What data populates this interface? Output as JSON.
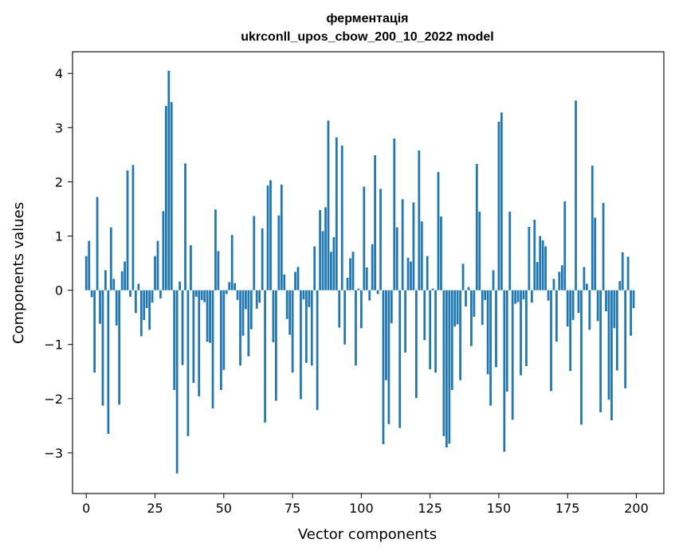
{
  "chart_data": {
    "type": "bar",
    "title_line1": "ферментація",
    "title_line2": "ukrconll_upos_cbow_200_10_2022 model",
    "xlabel": "Vector components",
    "ylabel": "Components values",
    "xlim": [
      -5,
      210
    ],
    "ylim": [
      -3.75,
      4.4
    ],
    "xticks": [
      0,
      25,
      50,
      75,
      100,
      125,
      150,
      175,
      200
    ],
    "yticks": [
      -3,
      -2,
      -1,
      0,
      1,
      2,
      3,
      4
    ],
    "bar_color": "#1f77b4",
    "x_start": 0,
    "values": [
      0.63,
      0.91,
      -0.13,
      -1.52,
      1.72,
      -0.62,
      -2.13,
      0.37,
      -2.65,
      1.16,
      0.21,
      -0.65,
      -2.11,
      0.35,
      0.53,
      2.21,
      -0.12,
      2.31,
      -0.42,
      0.12,
      -0.85,
      -0.55,
      -0.33,
      -0.73,
      -0.23,
      0.63,
      0.91,
      -0.15,
      1.46,
      3.4,
      4.05,
      3.47,
      -1.84,
      -3.38,
      0.16,
      -1.38,
      2.34,
      -2.69,
      0.83,
      -1.71,
      -0.12,
      -1.96,
      -0.18,
      -0.22,
      -0.95,
      -0.97,
      -2.18,
      1.49,
      0.72,
      -1.84,
      -1.47,
      -0.07,
      0.15,
      1.02,
      0.13,
      -0.18,
      -1.39,
      -0.84,
      -0.35,
      -1.22,
      -0.72,
      1.37,
      -0.34,
      -0.23,
      1.14,
      -2.44,
      1.93,
      2.03,
      -0.96,
      -2.04,
      1.38,
      1.95,
      0.29,
      -0.53,
      -0.82,
      -1.52,
      0.34,
      0.43,
      -2.01,
      -0.17,
      -1.34,
      -0.31,
      -1.39,
      0.81,
      -2.21,
      1.48,
      1.09,
      1.53,
      3.13,
      0.71,
      0.98,
      2.82,
      -0.69,
      2.67,
      -1.0,
      0.23,
      0.59,
      0.71,
      -1.39,
      0.03,
      -0.7,
      1.91,
      0.42,
      -0.19,
      0.85,
      2.49,
      -0.07,
      1.87,
      -2.84,
      -1.66,
      -2.47,
      -0.61,
      2.8,
      1.16,
      -2.54,
      1.68,
      -1.15,
      0.6,
      0.53,
      1.62,
      -1.99,
      2.58,
      1.27,
      -0.92,
      0.63,
      -1.46,
      0.03,
      -1.52,
      2.18,
      1.36,
      -2.69,
      -2.9,
      -2.83,
      -1.84,
      -0.67,
      -0.63,
      -1.66,
      0.49,
      -0.3,
      0.06,
      -1.03,
      -0.49,
      2.33,
      1.45,
      -0.64,
      -0.18,
      -1.55,
      -2.13,
      0.37,
      -1.42,
      3.11,
      3.28,
      -2.98,
      -1.87,
      1.45,
      -2.39,
      -0.25,
      -0.22,
      -1.57,
      -0.17,
      -1.4,
      1.17,
      -0.23,
      1.3,
      0.52,
      1.0,
      0.92,
      0.81,
      -0.19,
      -1.86,
      0.21,
      -0.95,
      0.34,
      0.46,
      1.64,
      -0.67,
      -1.49,
      -0.55,
      3.5,
      -0.42,
      -2.48,
      0.43,
      0.12,
      -0.73,
      2.3,
      1.34,
      -0.57,
      -2.25,
      1.61,
      -0.39,
      -2.02,
      -2.4,
      -0.7,
      -1.48,
      0.17,
      0.7,
      -1.81,
      0.62,
      -0.84,
      -0.33
    ]
  }
}
